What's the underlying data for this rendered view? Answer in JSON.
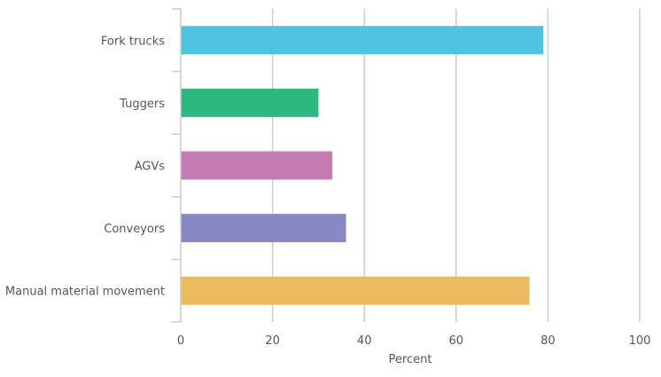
{
  "chart_data": {
    "type": "bar",
    "orientation": "horizontal",
    "categories": [
      "Fork trucks",
      "Tuggers",
      "AGVs",
      "Conveyors",
      "Manual material movement"
    ],
    "values": [
      79,
      30,
      33,
      36,
      76
    ],
    "colors": [
      "#4fc3df",
      "#2db882",
      "#c47bb3",
      "#8889c2",
      "#ebbc5f"
    ],
    "xlabel": "Percent",
    "ylabel": "",
    "xlim": [
      0,
      100
    ],
    "xticks": [
      0,
      20,
      40,
      60,
      80,
      100
    ],
    "grid": true,
    "legend": "none"
  }
}
